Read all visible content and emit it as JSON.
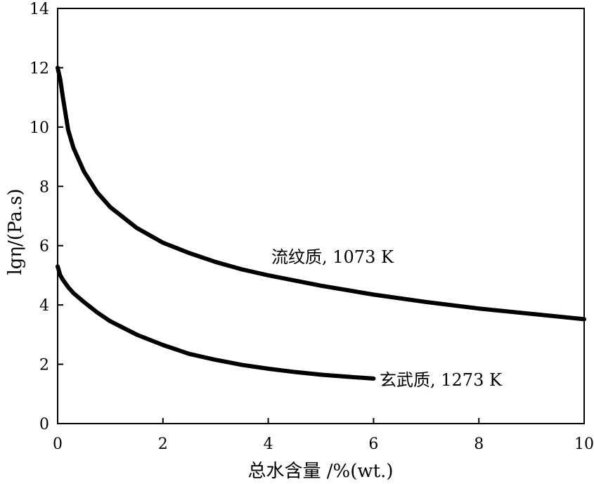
{
  "chart_data": {
    "type": "line",
    "xlabel": "总水含量 /%(wt.)",
    "ylabel": "lgη/(Pa.s)",
    "xlim": [
      0,
      10
    ],
    "ylim": [
      0,
      14
    ],
    "xticks": [
      0,
      2,
      4,
      6,
      8,
      10
    ],
    "yticks": [
      0,
      2,
      4,
      6,
      8,
      10,
      12,
      14
    ],
    "grid": false,
    "series": [
      {
        "name": "流纹质, 1073 K",
        "x": [
          0,
          0.05,
          0.1,
          0.2,
          0.3,
          0.5,
          0.75,
          1.0,
          1.5,
          2.0,
          2.5,
          3.0,
          3.5,
          4.0,
          5.0,
          6.0,
          7.0,
          8.0,
          9.0,
          10.0
        ],
        "y": [
          12.0,
          11.6,
          11.0,
          9.9,
          9.3,
          8.5,
          7.8,
          7.3,
          6.6,
          6.1,
          5.75,
          5.45,
          5.2,
          5.0,
          4.65,
          4.35,
          4.1,
          3.88,
          3.7,
          3.52
        ]
      },
      {
        "name": "玄武质, 1273 K",
        "x": [
          0,
          0.05,
          0.1,
          0.2,
          0.3,
          0.5,
          0.75,
          1.0,
          1.5,
          2.0,
          2.5,
          3.0,
          3.5,
          4.0,
          4.5,
          5.0,
          5.5,
          6.0
        ],
        "y": [
          5.3,
          5.0,
          4.85,
          4.6,
          4.4,
          4.1,
          3.75,
          3.45,
          3.0,
          2.65,
          2.35,
          2.15,
          1.98,
          1.85,
          1.74,
          1.65,
          1.58,
          1.52
        ]
      }
    ],
    "annotations": [
      {
        "text": "流纹质, 1073 K",
        "series": 0
      },
      {
        "text": "玄武质, 1273 K",
        "series": 1
      }
    ]
  }
}
